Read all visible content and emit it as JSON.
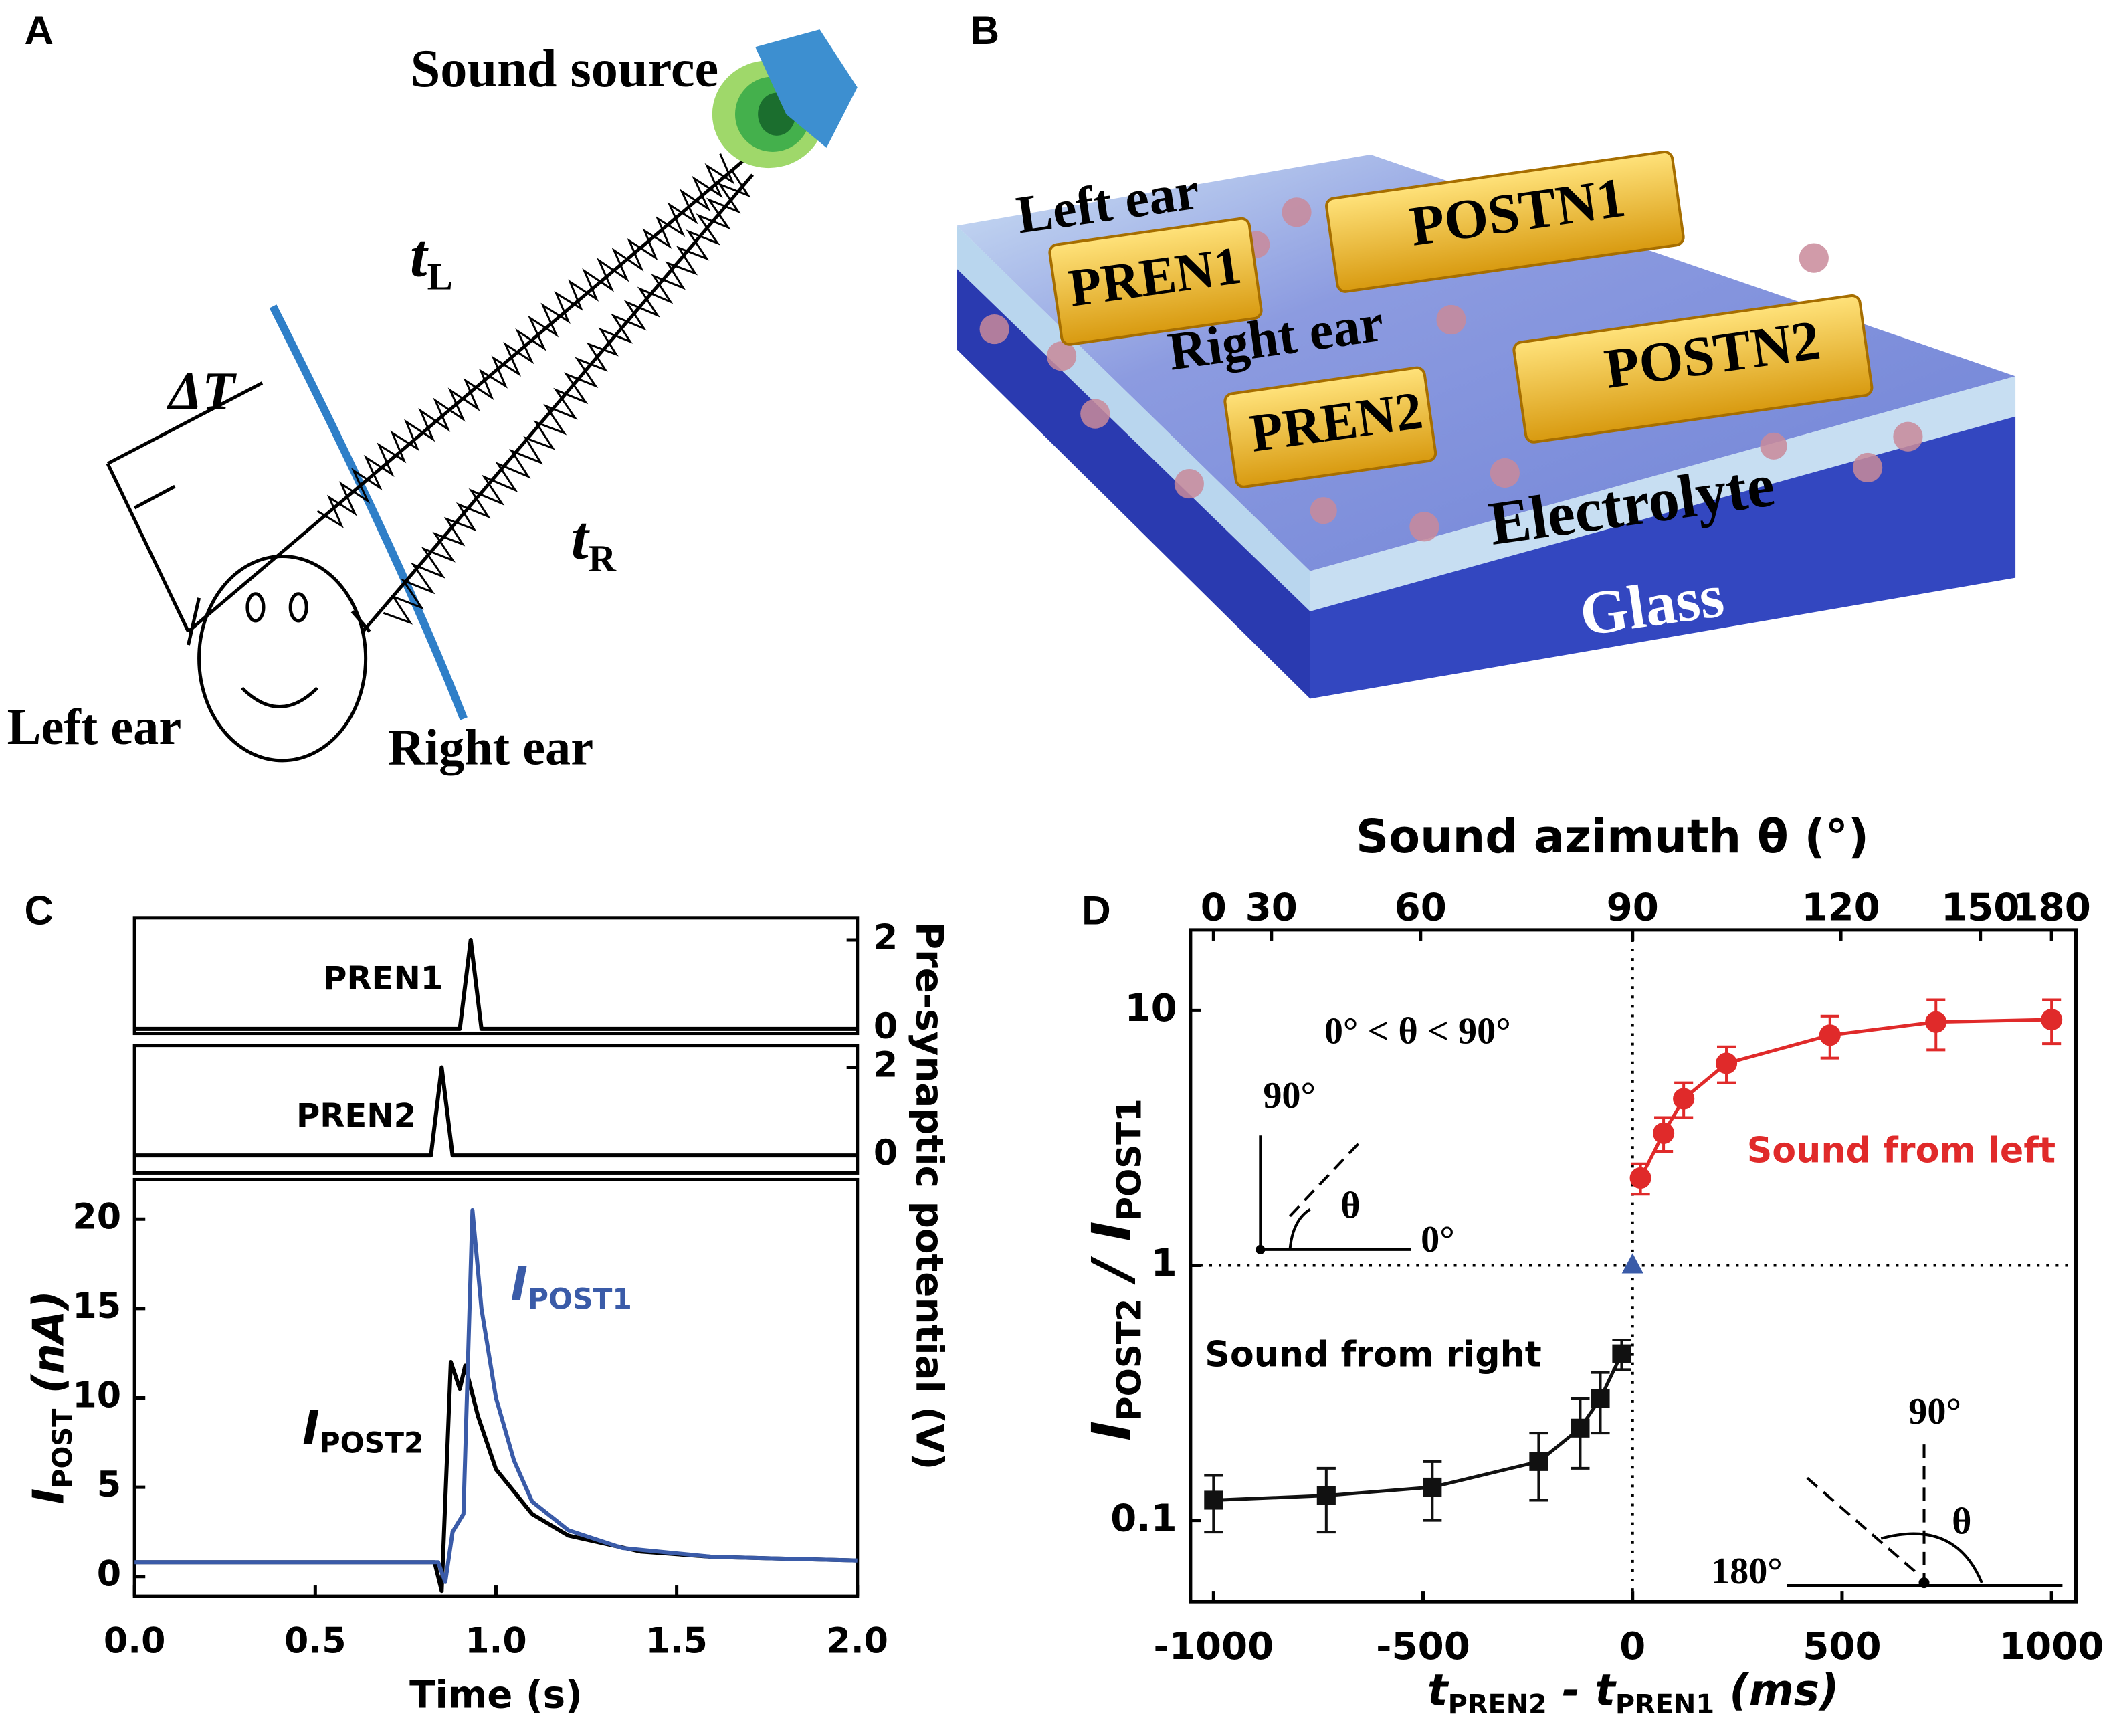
{
  "panel_labels": [
    "A",
    "B",
    "C",
    "D"
  ],
  "diagram_a": {
    "sound_source": "Sound source",
    "t_left": [
      "t",
      "L"
    ],
    "delta_t": "ΔT",
    "t_right": [
      "t",
      "R"
    ],
    "left_ear": "Left ear",
    "right_ear": "Right ear"
  },
  "diagram_b": {
    "left_ear": "Left ear",
    "right_ear": "Right ear",
    "electrodes": [
      "PREN1",
      "POSTN1",
      "PREN2",
      "POSTN2"
    ],
    "electrolyte": "Electrolyte",
    "glass": "Glass"
  },
  "chart_data": [
    {
      "type": "line",
      "xlim": [
        0,
        2
      ],
      "ylim": [
        -0.1,
        2.5
      ],
      "yticks": [
        0,
        2
      ],
      "y_axis_side": "right",
      "y_label": "Pre-synaptic potential (V)",
      "annotations": [
        {
          "text": "PREN1"
        }
      ],
      "series": [
        {
          "color": "#000000",
          "x": [
            0,
            0.9,
            0.93,
            0.96,
            2
          ],
          "values": [
            0,
            0,
            2,
            0,
            0
          ]
        }
      ]
    },
    {
      "type": "line",
      "xlim": [
        0,
        2
      ],
      "ylim": [
        -0.4,
        2.5
      ],
      "yticks": [
        0,
        2
      ],
      "y_axis_side": "right",
      "annotations": [
        {
          "text": "PREN2"
        }
      ],
      "series": [
        {
          "color": "#000000",
          "x": [
            0,
            0.82,
            0.85,
            0.88,
            2
          ],
          "values": [
            0,
            0,
            2,
            0,
            0
          ]
        }
      ]
    },
    {
      "type": "line",
      "xlim": [
        0,
        2
      ],
      "ylim": [
        -1.1,
        22.2
      ],
      "y_axis_side": "left",
      "xticks": [
        {
          "value": 0,
          "label": "0.0"
        },
        0.5,
        {
          "value": 1,
          "label": "1.0"
        },
        1.5,
        {
          "value": 2,
          "label": "2.0"
        }
      ],
      "yticks": [
        0,
        5,
        10,
        15,
        20
      ],
      "x_label": "Time (s)",
      "y_label": [
        "I",
        "POST",
        " (nA)"
      ],
      "annotations": [
        {
          "text": [
            "I",
            "POST1"
          ],
          "color": "#3a5ba8"
        },
        {
          "text": [
            "I",
            "POST2"
          ]
        }
      ],
      "series": [
        {
          "color": "#000000",
          "x": [
            0,
            0.3,
            0.6,
            0.83,
            0.85,
            0.875,
            0.9,
            0.915,
            0.95,
            1.0,
            1.1,
            1.2,
            1.4,
            1.6,
            2.0
          ],
          "values": [
            0.8,
            0.8,
            0.8,
            0.8,
            -0.8,
            12,
            10.5,
            11.8,
            9,
            6,
            3.5,
            2.3,
            1.4,
            1.1,
            0.9
          ]
        },
        {
          "color": "#3a5ba8",
          "x": [
            0,
            0.3,
            0.6,
            0.84,
            0.86,
            0.88,
            0.91,
            0.935,
            0.96,
            1.0,
            1.05,
            1.1,
            1.2,
            1.35,
            1.6,
            2.0
          ],
          "values": [
            0.8,
            0.8,
            0.8,
            0.8,
            -0.3,
            2.5,
            3.5,
            20.5,
            15,
            10,
            6.5,
            4.2,
            2.6,
            1.6,
            1.1,
            0.9
          ]
        }
      ]
    },
    {
      "type": "line",
      "ylog": true,
      "y_axis_side": "left",
      "xlim": [
        -1055,
        1058
      ],
      "ylim": [
        0.048,
        20.7
      ],
      "xticks": [
        -1000,
        -500,
        0,
        500,
        1000
      ],
      "yticks": [
        0.1,
        1,
        10
      ],
      "x2ticks": [
        {
          "value": -1000,
          "label": "0"
        },
        {
          "value": -862,
          "label": "30"
        },
        {
          "value": -506,
          "label": "60"
        },
        {
          "value": 0,
          "label": "90"
        },
        {
          "value": 497,
          "label": "120"
        },
        {
          "value": 830,
          "label": "150"
        },
        {
          "value": 1000,
          "label": "180"
        }
      ],
      "x2_label": "Sound azimuth θ (°)",
      "x_label": [
        "t",
        "PREN2",
        " - t",
        "PREN1",
        " (ms)"
      ],
      "y_label": [
        "I",
        "POST2",
        " / I",
        "POST1"
      ],
      "vlines": [
        0
      ],
      "hlines": [
        1
      ],
      "annotations": [
        {
          "text": "0° < θ < 90°"
        },
        {
          "text": "90°"
        },
        {
          "text": "θ"
        },
        {
          "text": "0°"
        },
        {
          "text": "Sound from left",
          "color": "#e02a2a"
        },
        {
          "text": "Sound from right"
        },
        {
          "text": "90°"
        },
        {
          "text": "θ"
        },
        {
          "text": "180°"
        }
      ],
      "series": [
        {
          "color": "#111111",
          "marker": "square",
          "x": [
            -1000,
            -731,
            -478,
            -224,
            -125,
            -77,
            -26
          ],
          "values": [
            0.12,
            0.125,
            0.135,
            0.17,
            0.23,
            0.3,
            0.45
          ],
          "errors": [
            0.03,
            0.035,
            0.035,
            0.05,
            0.07,
            0.08,
            0.06
          ]
        },
        {
          "color": "#e02a2a",
          "marker": "circle",
          "x": [
            19,
            74,
            122,
            224,
            471,
            724,
            1000
          ],
          "values": [
            2.2,
            3.3,
            4.5,
            6.2,
            8,
            9,
            9.2
          ],
          "errors": [
            0.3,
            0.5,
            0.7,
            1,
            1.5,
            2,
            1.8
          ]
        },
        {
          "color": "#3a5ba8",
          "marker": "triangle",
          "x": [
            0
          ],
          "values": [
            1
          ]
        }
      ]
    }
  ]
}
